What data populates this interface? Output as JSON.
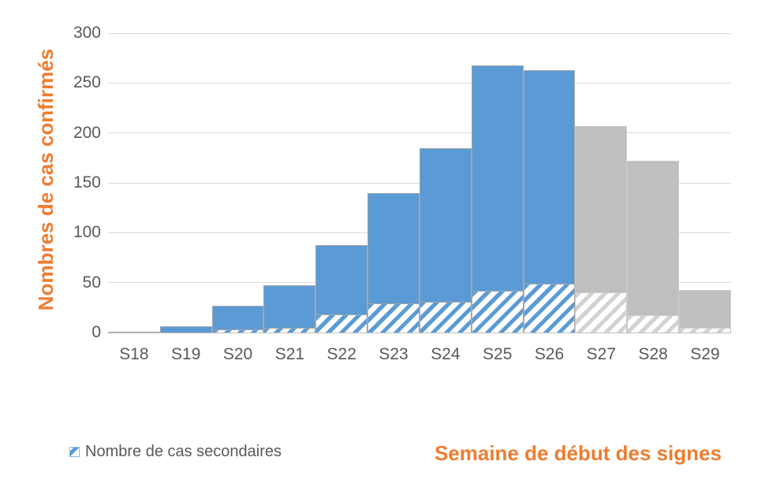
{
  "chart_data": {
    "type": "bar",
    "title": "",
    "categories": [
      "S18",
      "S19",
      "S20",
      "S21",
      "S22",
      "S23",
      "S24",
      "S25",
      "S26",
      "S27",
      "S28",
      "S29"
    ],
    "series": [
      {
        "id": "cas_confirmes_total",
        "values": [
          1,
          6,
          27,
          47,
          88,
          140,
          185,
          268,
          263,
          207,
          172,
          43
        ],
        "bar_colors": [
          "blue",
          "blue",
          "blue",
          "blue",
          "blue",
          "blue",
          "blue",
          "blue",
          "blue",
          "gray",
          "gray",
          "gray"
        ]
      },
      {
        "id": "cas_secondaires",
        "legend_label": "Nombre de cas secondaires",
        "values": [
          0,
          0,
          3,
          5,
          18,
          29,
          31,
          42,
          49,
          40,
          17,
          5
        ],
        "style": "diagonal-hatch"
      }
    ],
    "ylabel": "Nombres de cas confirmés",
    "xlabel": "Semaine de début des signes",
    "ylim": [
      0,
      300
    ],
    "yticks": [
      0,
      50,
      100,
      150,
      200,
      250,
      300
    ],
    "grid": true,
    "legend_position": "bottom-left"
  },
  "colors": {
    "blue": "#5B9BD5",
    "gray": "#BFBFBF",
    "gray_hatch_stripe": "#D2D2D2",
    "orange": "#ED7D31",
    "tick_text": "#595959",
    "gridline": "#D9D9D9",
    "axis_line": "#BFBFBF",
    "bar_border_blue": "#A6A6A6",
    "bar_border_gray": "#C9C9C9",
    "hatch_border_blue": "#8FB8DE",
    "hatch_border_gray": "#CFCFCF"
  }
}
